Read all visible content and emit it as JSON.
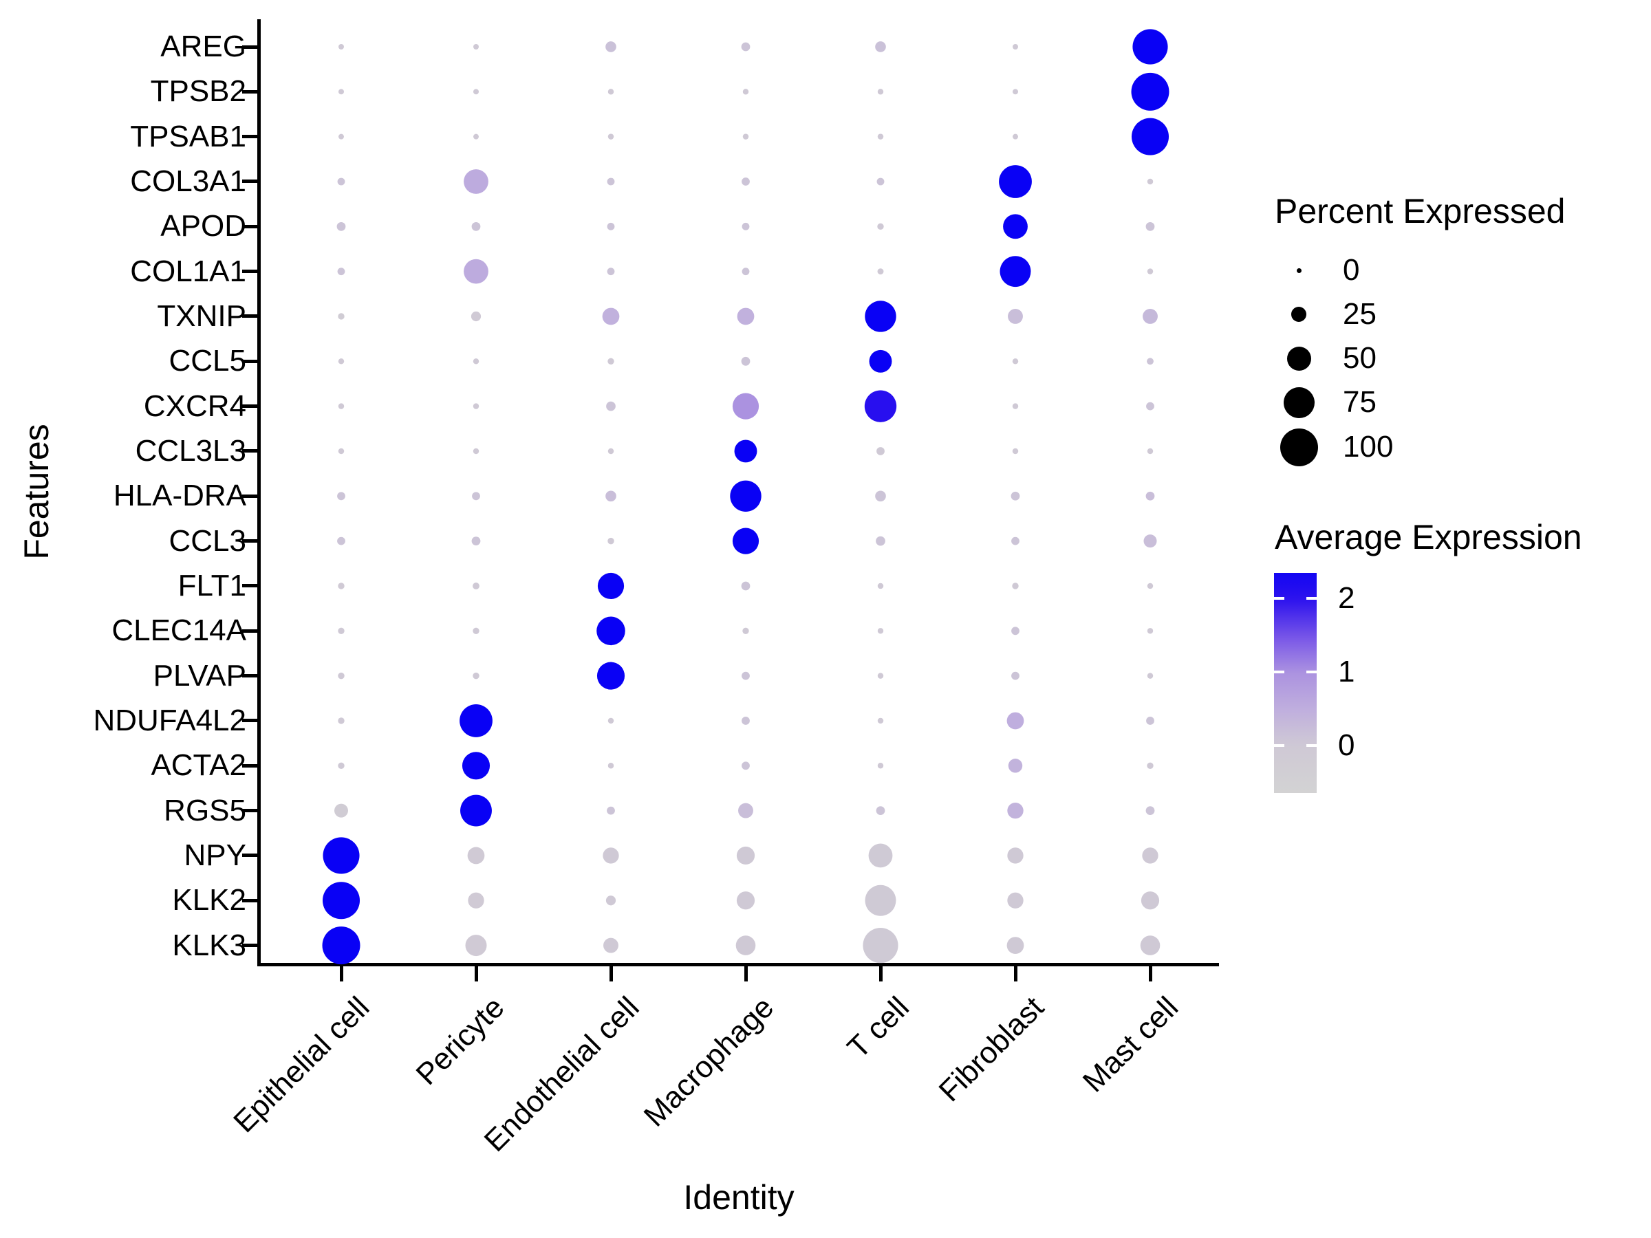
{
  "figure": {
    "x_axis_title": "Identity",
    "y_axis_title": "Features"
  },
  "chart_data": {
    "type": "scatter",
    "subtype": "dotplot",
    "title": "",
    "xlabel": "Identity",
    "ylabel": "Features",
    "x_categories": [
      "Epithelial cell",
      "Pericyte",
      "Endothelial cell",
      "Macrophage",
      "T cell",
      "Fibroblast",
      "Mast cell"
    ],
    "y_categories": [
      "AREG",
      "TPSB2",
      "TPSAB1",
      "COL3A1",
      "APOD",
      "COL1A1",
      "TXNIP",
      "CCL5",
      "CXCR4",
      "CCL3L3",
      "HLA-DRA",
      "CCL3",
      "FLT1",
      "CLEC14A",
      "PLVAP",
      "NDUFA4L2",
      "ACTA2",
      "RGS5",
      "NPY",
      "KLK2",
      "KLK3"
    ],
    "value_meaning": "each cell: pct = Percent Expressed (dot size), avg = Average Expression (dot color)",
    "rows": [
      {
        "gene": "AREG",
        "cells": [
          {
            "pct": 2,
            "avg": 0
          },
          {
            "pct": 2,
            "avg": 0
          },
          {
            "pct": 18,
            "avg": 0.15
          },
          {
            "pct": 12,
            "avg": 0.1
          },
          {
            "pct": 18,
            "avg": 0.15
          },
          {
            "pct": 2,
            "avg": 0
          },
          {
            "pct": 92,
            "avg": 2.5
          }
        ]
      },
      {
        "gene": "TPSB2",
        "cells": [
          {
            "pct": 2,
            "avg": 0
          },
          {
            "pct": 2,
            "avg": 0
          },
          {
            "pct": 3,
            "avg": 0
          },
          {
            "pct": 3,
            "avg": 0
          },
          {
            "pct": 3,
            "avg": 0
          },
          {
            "pct": 2,
            "avg": 0
          },
          {
            "pct": 100,
            "avg": 2.5
          }
        ]
      },
      {
        "gene": "TPSAB1",
        "cells": [
          {
            "pct": 2,
            "avg": 0
          },
          {
            "pct": 2,
            "avg": 0
          },
          {
            "pct": 3,
            "avg": 0
          },
          {
            "pct": 3,
            "avg": 0
          },
          {
            "pct": 3,
            "avg": 0
          },
          {
            "pct": 2,
            "avg": 0
          },
          {
            "pct": 98,
            "avg": 2.5
          }
        ]
      },
      {
        "gene": "COL3A1",
        "cells": [
          {
            "pct": 8,
            "avg": 0.1
          },
          {
            "pct": 60,
            "avg": 0.55
          },
          {
            "pct": 8,
            "avg": 0.1
          },
          {
            "pct": 10,
            "avg": 0.1
          },
          {
            "pct": 8,
            "avg": 0.1
          },
          {
            "pct": 85,
            "avg": 2.5
          },
          {
            "pct": 3,
            "avg": 0
          }
        ]
      },
      {
        "gene": "APOD",
        "cells": [
          {
            "pct": 12,
            "avg": 0.1
          },
          {
            "pct": 12,
            "avg": 0.1
          },
          {
            "pct": 8,
            "avg": 0.1
          },
          {
            "pct": 8,
            "avg": 0.1
          },
          {
            "pct": 5,
            "avg": 0
          },
          {
            "pct": 60,
            "avg": 2.5
          },
          {
            "pct": 12,
            "avg": 0.1
          }
        ]
      },
      {
        "gene": "COL1A1",
        "cells": [
          {
            "pct": 8,
            "avg": 0.1
          },
          {
            "pct": 60,
            "avg": 0.55
          },
          {
            "pct": 8,
            "avg": 0.1
          },
          {
            "pct": 8,
            "avg": 0.1
          },
          {
            "pct": 4,
            "avg": 0
          },
          {
            "pct": 79,
            "avg": 2.5
          },
          {
            "pct": 3,
            "avg": 0
          }
        ]
      },
      {
        "gene": "TXNIP",
        "cells": [
          {
            "pct": 5,
            "avg": -0.2
          },
          {
            "pct": 15,
            "avg": -0.1
          },
          {
            "pct": 37,
            "avg": 0.45
          },
          {
            "pct": 37,
            "avg": 0.45
          },
          {
            "pct": 80,
            "avg": 2.5
          },
          {
            "pct": 31,
            "avg": 0.2
          },
          {
            "pct": 31,
            "avg": 0.3
          }
        ]
      },
      {
        "gene": "CCL5",
        "cells": [
          {
            "pct": 3,
            "avg": 0
          },
          {
            "pct": 3,
            "avg": 0
          },
          {
            "pct": 5,
            "avg": 0
          },
          {
            "pct": 12,
            "avg": 0.1
          },
          {
            "pct": 54,
            "avg": 2.5
          },
          {
            "pct": 3,
            "avg": 0
          },
          {
            "pct": 6,
            "avg": 0.1
          }
        ]
      },
      {
        "gene": "CXCR4",
        "cells": [
          {
            "pct": 3,
            "avg": 0
          },
          {
            "pct": 3,
            "avg": 0
          },
          {
            "pct": 14,
            "avg": 0.1
          },
          {
            "pct": 65,
            "avg": 1.0
          },
          {
            "pct": 82,
            "avg": 2.05
          },
          {
            "pct": 3,
            "avg": 0
          },
          {
            "pct": 10,
            "avg": 0.1
          }
        ]
      },
      {
        "gene": "CCL3L3",
        "cells": [
          {
            "pct": 3,
            "avg": 0
          },
          {
            "pct": 3,
            "avg": 0
          },
          {
            "pct": 3,
            "avg": 0
          },
          {
            "pct": 54,
            "avg": 2.5
          },
          {
            "pct": 10,
            "avg": 0
          },
          {
            "pct": 3,
            "avg": 0
          },
          {
            "pct": 3,
            "avg": 0
          }
        ]
      },
      {
        "gene": "HLA-DRA",
        "cells": [
          {
            "pct": 10,
            "avg": 0.1
          },
          {
            "pct": 10,
            "avg": 0.1
          },
          {
            "pct": 18,
            "avg": 0.2
          },
          {
            "pct": 80,
            "avg": 2.5
          },
          {
            "pct": 18,
            "avg": 0.1
          },
          {
            "pct": 12,
            "avg": 0.1
          },
          {
            "pct": 12,
            "avg": 0.2
          }
        ]
      },
      {
        "gene": "CCL3",
        "cells": [
          {
            "pct": 10,
            "avg": 0.1
          },
          {
            "pct": 12,
            "avg": 0.1
          },
          {
            "pct": 5,
            "avg": 0
          },
          {
            "pct": 65,
            "avg": 2.5
          },
          {
            "pct": 14,
            "avg": 0.1
          },
          {
            "pct": 10,
            "avg": 0.1
          },
          {
            "pct": 25,
            "avg": 0.2
          }
        ]
      },
      {
        "gene": "FLT1",
        "cells": [
          {
            "pct": 5,
            "avg": -0.1
          },
          {
            "pct": 6,
            "avg": 0
          },
          {
            "pct": 65,
            "avg": 2.5
          },
          {
            "pct": 12,
            "avg": 0.1
          },
          {
            "pct": 3,
            "avg": 0
          },
          {
            "pct": 5,
            "avg": 0
          },
          {
            "pct": 3,
            "avg": 0
          }
        ]
      },
      {
        "gene": "CLEC14A",
        "cells": [
          {
            "pct": 5,
            "avg": 0
          },
          {
            "pct": 5,
            "avg": 0
          },
          {
            "pct": 72,
            "avg": 2.5
          },
          {
            "pct": 5,
            "avg": 0
          },
          {
            "pct": 3,
            "avg": 0
          },
          {
            "pct": 10,
            "avg": 0.1
          },
          {
            "pct": 3,
            "avg": 0
          }
        ]
      },
      {
        "gene": "PLVAP",
        "cells": [
          {
            "pct": 5,
            "avg": 0
          },
          {
            "pct": 5,
            "avg": 0
          },
          {
            "pct": 69,
            "avg": 2.5
          },
          {
            "pct": 10,
            "avg": 0.1
          },
          {
            "pct": 3,
            "avg": 0
          },
          {
            "pct": 10,
            "avg": 0.1
          },
          {
            "pct": 3,
            "avg": 0
          }
        ]
      },
      {
        "gene": "NDUFA4L2",
        "cells": [
          {
            "pct": 5,
            "avg": 0
          },
          {
            "pct": 85,
            "avg": 2.5
          },
          {
            "pct": 3,
            "avg": 0
          },
          {
            "pct": 10,
            "avg": 0.1
          },
          {
            "pct": 3,
            "avg": 0
          },
          {
            "pct": 37,
            "avg": 0.5
          },
          {
            "pct": 10,
            "avg": 0.1
          }
        ]
      },
      {
        "gene": "ACTA2",
        "cells": [
          {
            "pct": 5,
            "avg": 0
          },
          {
            "pct": 69,
            "avg": 2.5
          },
          {
            "pct": 3,
            "avg": 0
          },
          {
            "pct": 10,
            "avg": 0.1
          },
          {
            "pct": 3,
            "avg": 0
          },
          {
            "pct": 28,
            "avg": 0.4
          },
          {
            "pct": 5,
            "avg": 0
          }
        ]
      },
      {
        "gene": "RGS5",
        "cells": [
          {
            "pct": 27,
            "avg": -0.2
          },
          {
            "pct": 81,
            "avg": 2.5
          },
          {
            "pct": 10,
            "avg": 0.1
          },
          {
            "pct": 31,
            "avg": 0.2
          },
          {
            "pct": 12,
            "avg": 0.1
          },
          {
            "pct": 34,
            "avg": 0.4
          },
          {
            "pct": 12,
            "avg": 0.1
          }
        ]
      },
      {
        "gene": "NPY",
        "cells": [
          {
            "pct": 96,
            "avg": 2.5
          },
          {
            "pct": 37,
            "avg": -0.1
          },
          {
            "pct": 34,
            "avg": 0
          },
          {
            "pct": 40,
            "avg": 0
          },
          {
            "pct": 58,
            "avg": -0.05
          },
          {
            "pct": 34,
            "avg": 0
          },
          {
            "pct": 34,
            "avg": 0
          }
        ]
      },
      {
        "gene": "KLK2",
        "cells": [
          {
            "pct": 98,
            "avg": 2.5
          },
          {
            "pct": 34,
            "avg": -0.1
          },
          {
            "pct": 15,
            "avg": 0
          },
          {
            "pct": 40,
            "avg": 0
          },
          {
            "pct": 79,
            "avg": -0.05
          },
          {
            "pct": 34,
            "avg": 0
          },
          {
            "pct": 40,
            "avg": 0
          }
        ]
      },
      {
        "gene": "KLK3",
        "cells": [
          {
            "pct": 100,
            "avg": 2.5
          },
          {
            "pct": 50,
            "avg": -0.1
          },
          {
            "pct": 31,
            "avg": 0
          },
          {
            "pct": 45,
            "avg": 0
          },
          {
            "pct": 92,
            "avg": -0.05
          },
          {
            "pct": 37,
            "avg": 0
          },
          {
            "pct": 45,
            "avg": 0
          }
        ]
      }
    ],
    "legend_position": "right",
    "grid": false
  },
  "legend_size": {
    "title": "Percent Expressed",
    "values": [
      "0",
      "25",
      "50",
      "75",
      "100"
    ]
  },
  "legend_color": {
    "title": "Average Expression",
    "tick_labels": [
      "2",
      "1",
      "0"
    ],
    "tick_values": [
      2,
      1,
      0
    ],
    "bar_range_top": 2.35,
    "bar_range_bottom": -0.65
  },
  "colors": {
    "dot_color_stops": [
      [
        -0.7,
        "#d3d3d3"
      ],
      [
        0,
        "#cfc9d5"
      ],
      [
        0.5,
        "#bfaede"
      ],
      [
        1,
        "#ab92e0"
      ],
      [
        1.5,
        "#7452e8"
      ],
      [
        2,
        "#2b11ee"
      ],
      [
        2.5,
        "#0901f5"
      ]
    ],
    "axis": "#000000",
    "background": "#ffffff",
    "legend_dot": "#000000"
  }
}
